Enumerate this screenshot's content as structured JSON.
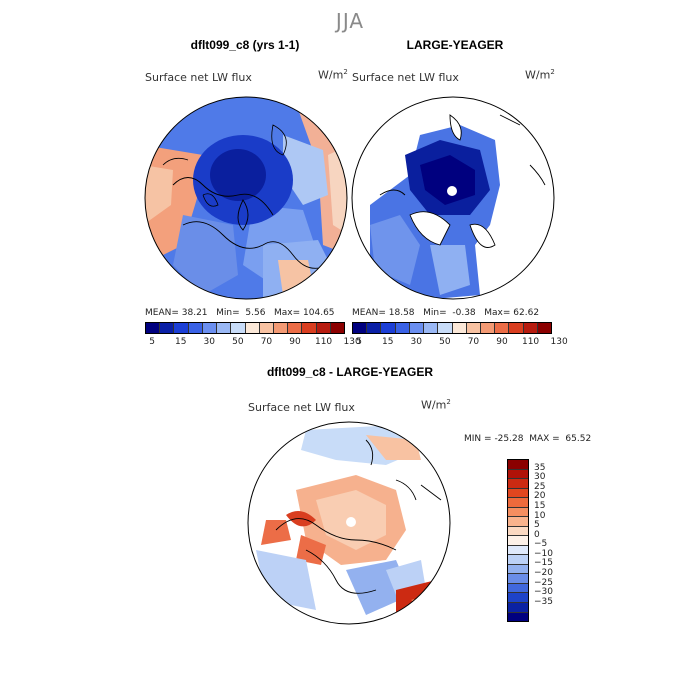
{
  "figure": {
    "title": "JJA"
  },
  "panels": [
    {
      "title": "dflt099_c8 (yrs 1-1)",
      "variable": "Surface net LW flux",
      "units_base": "W/m",
      "units_sup": "2",
      "stats": {
        "mean_label": "MEAN=",
        "mean": "38.21",
        "min_label": "Min=",
        "min": "5.56",
        "max_label": "Max=",
        "max": "104.65"
      }
    },
    {
      "title": "LARGE-YEAGER",
      "variable": "Surface net LW flux",
      "units_base": "W/m",
      "units_sup": "2",
      "stats": {
        "mean_label": "MEAN=",
        "mean": "18.58",
        "min_label": "Min=",
        "min": "-0.38",
        "max_label": "Max=",
        "max": "62.62"
      }
    },
    {
      "title": "dflt099_c8 - LARGE-YEAGER",
      "variable": "Surface net LW flux",
      "units_base": "W/m",
      "units_sup": "2",
      "stats": {
        "min_label": "MIN =",
        "min": "-25.28",
        "max_label": "MAX =",
        "max": "65.52"
      }
    }
  ],
  "colorbar_abs": {
    "colors": [
      "#00007f",
      "#0a1fa6",
      "#1c3fd6",
      "#3a62e6",
      "#6b8ff0",
      "#9ab8f5",
      "#c8dcf8",
      "#fbe8d8",
      "#f8c2a2",
      "#f39a74",
      "#ec6d47",
      "#d93e20",
      "#b71c10",
      "#8b0000"
    ],
    "tick_labels": [
      "5",
      "15",
      "30",
      "50",
      "70",
      "90",
      "110",
      "130"
    ]
  },
  "colorbar_diff": {
    "colors": [
      "#8b0000",
      "#b01208",
      "#cc2a12",
      "#e1461f",
      "#ee6a3c",
      "#f58e60",
      "#f9b38d",
      "#fbd9c2",
      "#fdf1e8",
      "#dfe9fb",
      "#bcd1f6",
      "#93b1ef",
      "#6a8de8",
      "#4168dd",
      "#1e43c8",
      "#0b22a3",
      "#00007f"
    ],
    "tick_labels": [
      "35",
      "30",
      "25",
      "20",
      "15",
      "10",
      "5",
      "0",
      "−5",
      "−10",
      "−15",
      "−20",
      "−25",
      "−30",
      "−35"
    ]
  }
}
